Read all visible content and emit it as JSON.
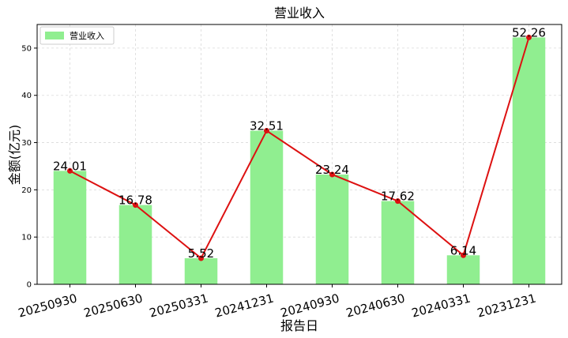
{
  "chart_data": {
    "type": "bar",
    "title": "营业收入",
    "xlabel": "报告日",
    "ylabel": "金额(亿元)",
    "categories": [
      "20250930",
      "20250630",
      "20250331",
      "20241231",
      "20240930",
      "20240630",
      "20240331",
      "20231231"
    ],
    "series": [
      {
        "name": "营业收入",
        "values": [
          24.01,
          16.78,
          5.52,
          32.51,
          23.24,
          17.62,
          6.14,
          52.26
        ]
      }
    ],
    "value_labels": [
      "24.01",
      "16.78",
      "5.52",
      "32.51",
      "23.24",
      "17.62",
      "6.14",
      "52.26"
    ],
    "y_ticks": [
      0,
      10,
      20,
      30,
      40,
      50
    ],
    "ylim": [
      0,
      55
    ],
    "grid": true,
    "legend_position": "top-left",
    "line_overlay": true,
    "colors": {
      "bar": "#90ee90",
      "line": "#dd1111",
      "marker": "#dd1111"
    }
  }
}
